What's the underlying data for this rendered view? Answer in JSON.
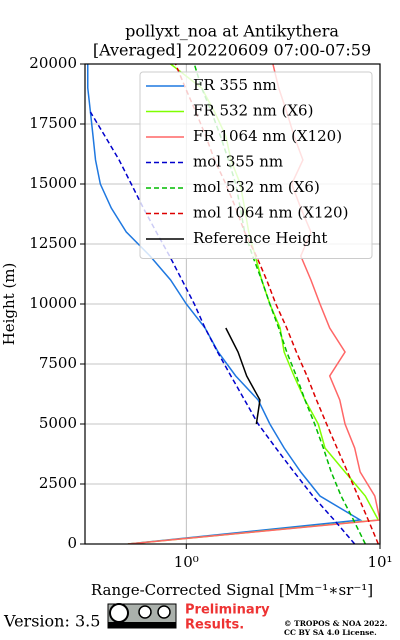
{
  "chart_data": {
    "type": "profile",
    "title": "pollyxt_noa at Antikythera",
    "subtitle": "[Averaged] 20220609 07:00-07:59",
    "x_label": "Range-Corrected Signal [Mm⁻¹∗sr⁻¹]",
    "y_label": "Height (m)",
    "xscale": "log",
    "xlim": [
      0.3,
      10
    ],
    "xticks": [
      {
        "value": 1,
        "label": "10⁰"
      },
      {
        "value": 10,
        "label": "10¹"
      }
    ],
    "ylim": [
      0,
      20000
    ],
    "yticks": [
      0,
      2500,
      5000,
      7500,
      10000,
      12500,
      15000,
      17500,
      20000
    ],
    "grid": true,
    "legend": "upper right",
    "heights": [
      0,
      1000,
      2000,
      3000,
      4000,
      5000,
      6000,
      7000,
      8000,
      9000,
      10000,
      11000,
      12000,
      13000,
      14000,
      15000,
      16000,
      17000,
      18000,
      19000,
      20000
    ],
    "series": [
      {
        "name": "FR 355 nm",
        "color": "#1f78e0",
        "linestyle": "solid",
        "values": [
          0.5,
          7.9,
          4.9,
          3.9,
          3.2,
          2.7,
          2.35,
          1.8,
          1.46,
          1.25,
          1.0,
          0.83,
          0.65,
          0.49,
          0.41,
          0.36,
          0.34,
          0.33,
          0.32,
          0.31,
          0.31
        ]
      },
      {
        "name": "FR 532 nm (X6)",
        "color": "#7fff00",
        "linestyle": "solid",
        "values": [
          0.5,
          9.8,
          8.4,
          6.6,
          5.2,
          4.8,
          4.1,
          3.6,
          3.2,
          3.05,
          2.7,
          2.45,
          2.27,
          2.1,
          2.0,
          1.9,
          1.7,
          1.6,
          1.4,
          1.2,
          0.83
        ]
      },
      {
        "name": "FR 1064 nm (X120)",
        "color": "#ff6666",
        "linestyle": "solid",
        "values": [
          0.5,
          10,
          9.4,
          7.9,
          7.4,
          6.6,
          6.2,
          5.5,
          6.6,
          5.5,
          4.9,
          4.4,
          3.9,
          4.4,
          3.9,
          3.5,
          4.0,
          3.6,
          3.3,
          3.0,
          2.8
        ]
      },
      {
        "name": "mol 355 nm",
        "color": "#0000cc",
        "linestyle": "dashed",
        "values": [
          7.4,
          5.8,
          4.5,
          3.6,
          2.9,
          2.35,
          2.0,
          1.7,
          1.45,
          1.25,
          1.1,
          0.95,
          0.82,
          0.7,
          0.6,
          0.52,
          0.45,
          0.38,
          0.32,
          null,
          null
        ]
      },
      {
        "name": "mol 532 nm (X6)",
        "color": "#00bb00",
        "linestyle": "dashed",
        "values": [
          8.4,
          7.3,
          6.3,
          5.6,
          5.1,
          4.6,
          4.1,
          3.7,
          3.3,
          3.0,
          2.7,
          2.45,
          2.2,
          2.0,
          1.9,
          1.8,
          1.65,
          1.5,
          1.35,
          1.2,
          1.1
        ]
      },
      {
        "name": "mol 1064 nm (X120)",
        "color": "#dd0000",
        "linestyle": "dashed",
        "values": [
          9.8,
          8.7,
          7.7,
          6.8,
          6.0,
          5.3,
          4.7,
          4.2,
          3.7,
          3.3,
          2.9,
          2.6,
          2.3,
          2.0,
          1.8,
          1.6,
          1.4,
          1.26,
          1.12,
          0.99,
          0.88
        ]
      },
      {
        "name": "Reference Height",
        "color": "#000000",
        "linestyle": "solid",
        "values": [
          null,
          null,
          null,
          null,
          null,
          2.3,
          2.4,
          2.05,
          1.85,
          1.6,
          null,
          null,
          null,
          null,
          null,
          null,
          null,
          null,
          null,
          null,
          null
        ]
      }
    ]
  },
  "footer": {
    "version": "Version: 3.5",
    "notice_line1": "Preliminary",
    "notice_line2": "Results.",
    "copyright_line1": "© TROPOS & NOA 2022.",
    "copyright_line2": "CC BY SA 4.0 License."
  }
}
